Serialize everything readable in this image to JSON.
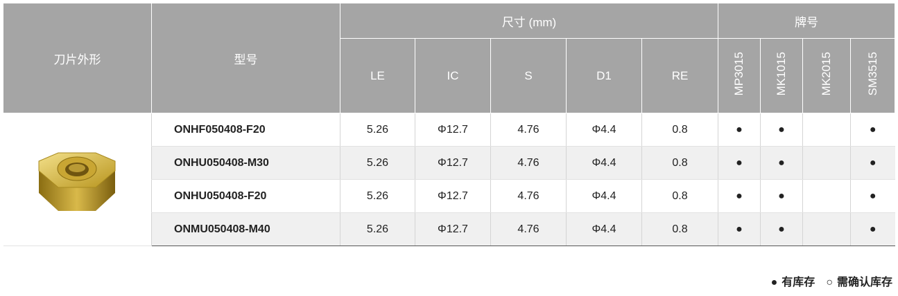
{
  "table": {
    "header": {
      "shape": "刀片外形",
      "model": "型号",
      "dimensions": "尺寸 (mm)",
      "grades": "牌号",
      "dimension_columns": [
        "LE",
        "IC",
        "S",
        "D1",
        "RE"
      ],
      "grade_columns": [
        "MP3015",
        "MK1015",
        "MK2015",
        "SM3515"
      ]
    },
    "rows": [
      {
        "model": "ONHF050408-F20",
        "dimensions": [
          5.26,
          "Φ12.7",
          4.76,
          "Φ4.4",
          0.8
        ],
        "grades": [
          "●",
          "●",
          null,
          "●"
        ]
      },
      {
        "model": "ONHU050408-M30",
        "dimensions": [
          5.26,
          "Φ12.7",
          4.76,
          "Φ4.4",
          0.8
        ],
        "grades": [
          "●",
          "●",
          null,
          "●"
        ]
      },
      {
        "model": "ONHU050408-F20",
        "dimensions": [
          5.26,
          "Φ12.7",
          4.76,
          "Φ4.4",
          0.8
        ],
        "grades": [
          "●",
          "●",
          null,
          "●"
        ]
      },
      {
        "model": "ONMU050408-M40",
        "dimensions": [
          5.26,
          "Φ12.7",
          4.76,
          "Φ4.4",
          0.8
        ],
        "grades": [
          "●",
          "●",
          null,
          "●"
        ]
      }
    ]
  },
  "legend": [
    {
      "symbol": "●",
      "label": "有库存"
    },
    {
      "symbol": "○",
      "label": "需确认库存"
    }
  ]
}
